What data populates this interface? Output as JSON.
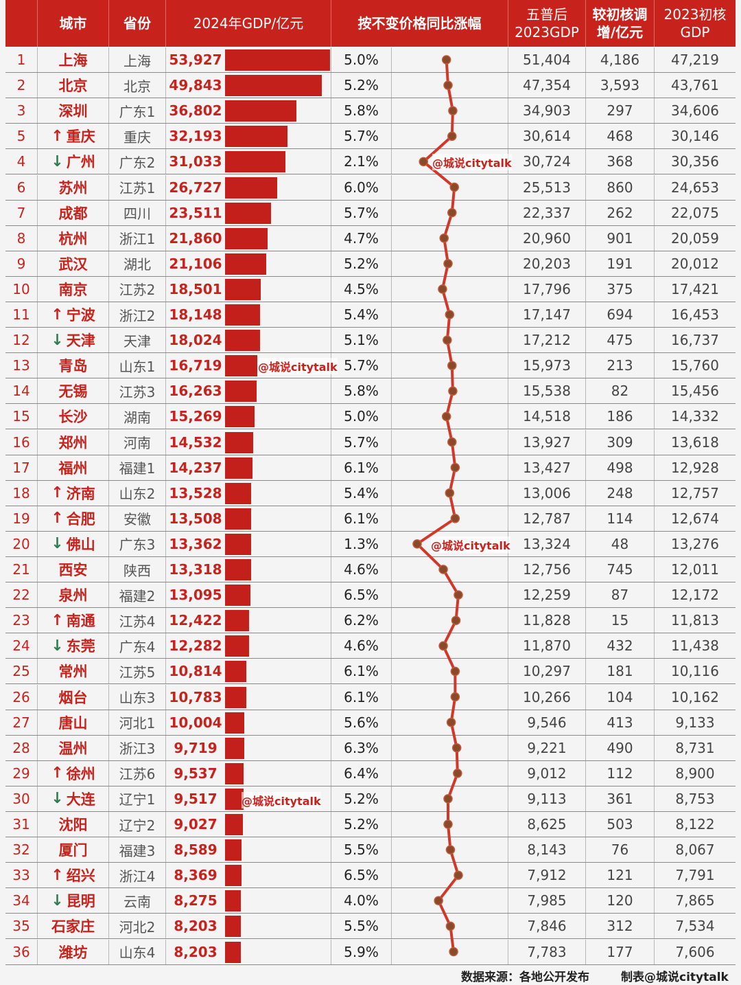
{
  "chart_data": {
    "type": "table",
    "headers": {
      "blank": "",
      "city": "城市",
      "province": "省份",
      "gdp2024": "2024年GDP/亿元",
      "growth": "按不变价格同比涨幅",
      "census2023": "五普后\n2023GDP",
      "adjust": "较初核调\n增/亿元",
      "initial2023": "2023初核\nGDP"
    },
    "rows": [
      {
        "rank": "1",
        "arrow": "",
        "city": "上海",
        "province": "上海",
        "gdp": "53,927",
        "gdp_value": 53927,
        "growth": "5.0%",
        "growth_value": 5.0,
        "census": "51,404",
        "adjust": "4,186",
        "initial": "47,219"
      },
      {
        "rank": "2",
        "arrow": "",
        "city": "北京",
        "province": "北京",
        "gdp": "49,843",
        "gdp_value": 49843,
        "growth": "5.2%",
        "growth_value": 5.2,
        "census": "47,354",
        "adjust": "3,593",
        "initial": "43,761"
      },
      {
        "rank": "3",
        "arrow": "",
        "city": "深圳",
        "province": "广东1",
        "gdp": "36,802",
        "gdp_value": 36802,
        "growth": "5.8%",
        "growth_value": 5.8,
        "census": "34,903",
        "adjust": "297",
        "initial": "34,606"
      },
      {
        "rank": "5",
        "arrow": "up",
        "city": "重庆",
        "province": "重庆",
        "gdp": "32,193",
        "gdp_value": 32193,
        "growth": "5.7%",
        "growth_value": 5.7,
        "census": "30,614",
        "adjust": "468",
        "initial": "30,146"
      },
      {
        "rank": "4",
        "arrow": "down",
        "city": "广州",
        "province": "广东2",
        "gdp": "31,033",
        "gdp_value": 31033,
        "growth": "2.1%",
        "growth_value": 2.1,
        "census": "30,724",
        "adjust": "368",
        "initial": "30,356"
      },
      {
        "rank": "6",
        "arrow": "",
        "city": "苏州",
        "province": "江苏1",
        "gdp": "26,727",
        "gdp_value": 26727,
        "growth": "6.0%",
        "growth_value": 6.0,
        "census": "25,513",
        "adjust": "860",
        "initial": "24,653"
      },
      {
        "rank": "7",
        "arrow": "",
        "city": "成都",
        "province": "四川",
        "gdp": "23,511",
        "gdp_value": 23511,
        "growth": "5.7%",
        "growth_value": 5.7,
        "census": "22,337",
        "adjust": "262",
        "initial": "22,075"
      },
      {
        "rank": "8",
        "arrow": "",
        "city": "杭州",
        "province": "浙江1",
        "gdp": "21,860",
        "gdp_value": 21860,
        "growth": "4.7%",
        "growth_value": 4.7,
        "census": "20,960",
        "adjust": "901",
        "initial": "20,059"
      },
      {
        "rank": "9",
        "arrow": "",
        "city": "武汉",
        "province": "湖北",
        "gdp": "21,106",
        "gdp_value": 21106,
        "growth": "5.2%",
        "growth_value": 5.2,
        "census": "20,203",
        "adjust": "191",
        "initial": "20,012"
      },
      {
        "rank": "10",
        "arrow": "",
        "city": "南京",
        "province": "江苏2",
        "gdp": "18,501",
        "gdp_value": 18501,
        "growth": "4.5%",
        "growth_value": 4.5,
        "census": "17,796",
        "adjust": "375",
        "initial": "17,421"
      },
      {
        "rank": "11",
        "arrow": "up",
        "city": "宁波",
        "province": "浙江2",
        "gdp": "18,148",
        "gdp_value": 18148,
        "growth": "5.4%",
        "growth_value": 5.4,
        "census": "17,147",
        "adjust": "694",
        "initial": "16,453"
      },
      {
        "rank": "12",
        "arrow": "down",
        "city": "天津",
        "province": "天津",
        "gdp": "18,024",
        "gdp_value": 18024,
        "growth": "5.1%",
        "growth_value": 5.1,
        "census": "17,212",
        "adjust": "475",
        "initial": "16,737"
      },
      {
        "rank": "13",
        "arrow": "",
        "city": "青岛",
        "province": "山东1",
        "gdp": "16,719",
        "gdp_value": 16719,
        "growth": "5.7%",
        "growth_value": 5.7,
        "census": "15,973",
        "adjust": "213",
        "initial": "15,760"
      },
      {
        "rank": "14",
        "arrow": "",
        "city": "无锡",
        "province": "江苏3",
        "gdp": "16,263",
        "gdp_value": 16263,
        "growth": "5.8%",
        "growth_value": 5.8,
        "census": "15,538",
        "adjust": "82",
        "initial": "15,456"
      },
      {
        "rank": "15",
        "arrow": "",
        "city": "长沙",
        "province": "湖南",
        "gdp": "15,269",
        "gdp_value": 15269,
        "growth": "5.0%",
        "growth_value": 5.0,
        "census": "14,518",
        "adjust": "186",
        "initial": "14,332"
      },
      {
        "rank": "16",
        "arrow": "",
        "city": "郑州",
        "province": "河南",
        "gdp": "14,532",
        "gdp_value": 14532,
        "growth": "5.7%",
        "growth_value": 5.7,
        "census": "13,927",
        "adjust": "309",
        "initial": "13,618"
      },
      {
        "rank": "17",
        "arrow": "",
        "city": "福州",
        "province": "福建1",
        "gdp": "14,237",
        "gdp_value": 14237,
        "growth": "6.1%",
        "growth_value": 6.1,
        "census": "13,427",
        "adjust": "498",
        "initial": "12,928"
      },
      {
        "rank": "18",
        "arrow": "up",
        "city": "济南",
        "province": "山东2",
        "gdp": "13,528",
        "gdp_value": 13528,
        "growth": "5.4%",
        "growth_value": 5.4,
        "census": "13,006",
        "adjust": "248",
        "initial": "12,757"
      },
      {
        "rank": "19",
        "arrow": "up",
        "city": "合肥",
        "province": "安徽",
        "gdp": "13,508",
        "gdp_value": 13508,
        "growth": "6.1%",
        "growth_value": 6.1,
        "census": "12,787",
        "adjust": "114",
        "initial": "12,674"
      },
      {
        "rank": "20",
        "arrow": "down",
        "city": "佛山",
        "province": "广东3",
        "gdp": "13,362",
        "gdp_value": 13362,
        "growth": "1.3%",
        "growth_value": 1.3,
        "census": "13,324",
        "adjust": "48",
        "initial": "13,276"
      },
      {
        "rank": "21",
        "arrow": "",
        "city": "西安",
        "province": "陕西",
        "gdp": "13,318",
        "gdp_value": 13318,
        "growth": "4.6%",
        "growth_value": 4.6,
        "census": "12,756",
        "adjust": "745",
        "initial": "12,011"
      },
      {
        "rank": "22",
        "arrow": "",
        "city": "泉州",
        "province": "福建2",
        "gdp": "13,095",
        "gdp_value": 13095,
        "growth": "6.5%",
        "growth_value": 6.5,
        "census": "12,259",
        "adjust": "87",
        "initial": "12,172"
      },
      {
        "rank": "23",
        "arrow": "up",
        "city": "南通",
        "province": "江苏4",
        "gdp": "12,422",
        "gdp_value": 12422,
        "growth": "6.2%",
        "growth_value": 6.2,
        "census": "11,828",
        "adjust": "15",
        "initial": "11,813"
      },
      {
        "rank": "24",
        "arrow": "down",
        "city": "东莞",
        "province": "广东4",
        "gdp": "12,282",
        "gdp_value": 12282,
        "growth": "4.6%",
        "growth_value": 4.6,
        "census": "11,870",
        "adjust": "432",
        "initial": "11,438"
      },
      {
        "rank": "25",
        "arrow": "",
        "city": "常州",
        "province": "江苏5",
        "gdp": "10,814",
        "gdp_value": 10814,
        "growth": "6.1%",
        "growth_value": 6.1,
        "census": "10,297",
        "adjust": "181",
        "initial": "10,116"
      },
      {
        "rank": "26",
        "arrow": "",
        "city": "烟台",
        "province": "山东3",
        "gdp": "10,783",
        "gdp_value": 10783,
        "growth": "6.1%",
        "growth_value": 6.1,
        "census": "10,266",
        "adjust": "104",
        "initial": "10,162"
      },
      {
        "rank": "27",
        "arrow": "",
        "city": "唐山",
        "province": "河北1",
        "gdp": "10,004",
        "gdp_value": 10004,
        "growth": "5.6%",
        "growth_value": 5.6,
        "census": "9,546",
        "adjust": "413",
        "initial": "9,133"
      },
      {
        "rank": "28",
        "arrow": "",
        "city": "温州",
        "province": "浙江3",
        "gdp": "9,719",
        "gdp_value": 9719,
        "growth": "6.3%",
        "growth_value": 6.3,
        "census": "9,221",
        "adjust": "490",
        "initial": "8,731"
      },
      {
        "rank": "29",
        "arrow": "up",
        "city": "徐州",
        "province": "江苏6",
        "gdp": "9,537",
        "gdp_value": 9537,
        "growth": "6.4%",
        "growth_value": 6.4,
        "census": "9,012",
        "adjust": "112",
        "initial": "8,900"
      },
      {
        "rank": "30",
        "arrow": "down",
        "city": "大连",
        "province": "辽宁1",
        "gdp": "9,517",
        "gdp_value": 9517,
        "growth": "5.2%",
        "growth_value": 5.2,
        "census": "9,113",
        "adjust": "361",
        "initial": "8,753"
      },
      {
        "rank": "31",
        "arrow": "",
        "city": "沈阳",
        "province": "辽宁2",
        "gdp": "9,027",
        "gdp_value": 9027,
        "growth": "5.2%",
        "growth_value": 5.2,
        "census": "8,625",
        "adjust": "503",
        "initial": "8,122"
      },
      {
        "rank": "32",
        "arrow": "",
        "city": "厦门",
        "province": "福建3",
        "gdp": "8,589",
        "gdp_value": 8589,
        "growth": "5.5%",
        "growth_value": 5.5,
        "census": "8,143",
        "adjust": "76",
        "initial": "8,067"
      },
      {
        "rank": "33",
        "arrow": "up",
        "city": "绍兴",
        "province": "浙江4",
        "gdp": "8,369",
        "gdp_value": 8369,
        "growth": "6.5%",
        "growth_value": 6.5,
        "census": "7,912",
        "adjust": "121",
        "initial": "7,791"
      },
      {
        "rank": "34",
        "arrow": "down",
        "city": "昆明",
        "province": "云南",
        "gdp": "8,275",
        "gdp_value": 8275,
        "growth": "4.0%",
        "growth_value": 4.0,
        "census": "7,985",
        "adjust": "120",
        "initial": "7,865"
      },
      {
        "rank": "35",
        "arrow": "",
        "city": "石家庄",
        "province": "河北2",
        "gdp": "8,203",
        "gdp_value": 8203,
        "growth": "5.5%",
        "growth_value": 5.5,
        "census": "7,846",
        "adjust": "312",
        "initial": "7,534"
      },
      {
        "rank": "36",
        "arrow": "",
        "city": "潍坊",
        "province": "山东4",
        "gdp": "8,203",
        "gdp_value": 8203,
        "growth": "5.9%",
        "growth_value": 5.9,
        "census": "7,783",
        "adjust": "177",
        "initial": "7,606"
      }
    ],
    "bar_max": 53927,
    "growth_range": [
      1.0,
      7.0
    ]
  },
  "watermarks": [
    "@城说citytalk",
    "@城说citytalk",
    "@城说citytalk",
    "@城说citytalk",
    "@城说citytalk"
  ],
  "footer": {
    "source": "数据来源：各地公开发布",
    "maker": "制表@城说citytalk"
  },
  "colors": {
    "header_bg": "#c8221d",
    "bar": "#c3201b",
    "line": "#d0382a",
    "dot": "#8a4a2a"
  }
}
